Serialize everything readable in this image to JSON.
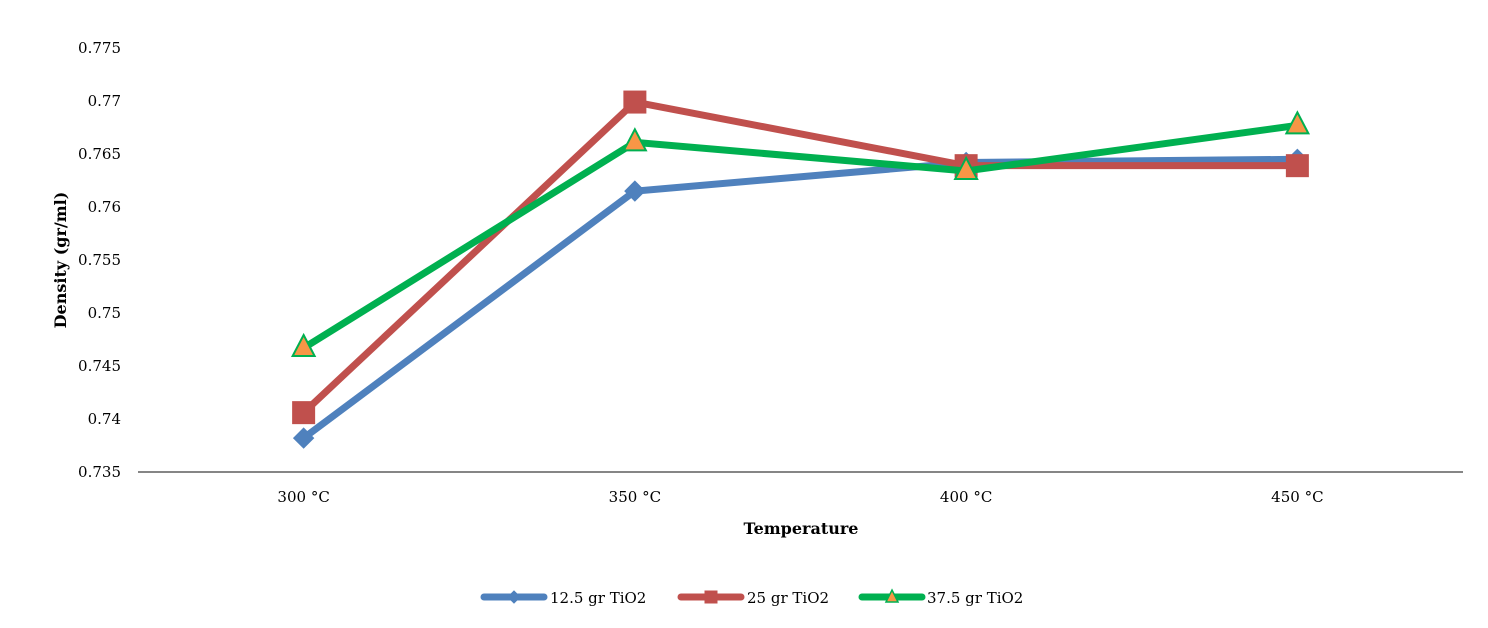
{
  "chart_data": {
    "type": "line",
    "categories": [
      "300 °C",
      "350 °C",
      "400 °C",
      "450 °C"
    ],
    "xlabel": "Temperature",
    "ylabel": "Density  (gr/ml)",
    "ylim": [
      0.735,
      0.775
    ],
    "yticks": [
      "0.735",
      "0.74",
      "0.745",
      "0.75",
      "0.755",
      "0.76",
      "0.765",
      "0.77",
      "0.775"
    ],
    "grid": false,
    "legend_position": "bottom",
    "series": [
      {
        "name": "12.5 gr TiO2",
        "values": [
          0.7382,
          0.7615,
          0.7642,
          0.7645
        ],
        "color": "#4F81BD",
        "marker": "diamond"
      },
      {
        "name": "25 gr TiO2",
        "values": [
          0.7406,
          0.7699,
          0.7639,
          0.7639
        ],
        "color": "#C0504D",
        "marker": "square"
      },
      {
        "name": "37.5 gr TiO2",
        "values": [
          0.7467,
          0.7661,
          0.7634,
          0.7677
        ],
        "color": "#00B050",
        "marker": "triangle",
        "marker_fill": "#F79646"
      }
    ]
  }
}
